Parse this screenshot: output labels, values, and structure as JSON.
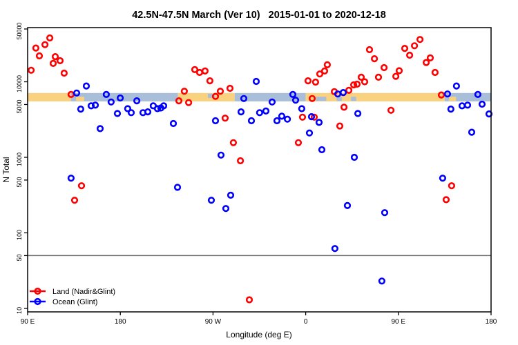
{
  "chart_data": {
    "type": "scatter",
    "title": "42.5N-47.5N March (Ver 10)   2015-01-01 to 2020-12-18",
    "xlabel": "Longitude (deg E)",
    "ylabel": "N Total",
    "x_axis": {
      "scale": "linear",
      "unit": "deg E (wrapped, 90E eastward around globe to 180)",
      "range_deg": [
        90,
        540
      ],
      "ticks": [
        {
          "deg": 90,
          "label": "90 E"
        },
        {
          "deg": 180,
          "label": "180"
        },
        {
          "deg": 270,
          "label": "90 W"
        },
        {
          "deg": 360,
          "label": "0"
        },
        {
          "deg": 450,
          "label": "90 E"
        },
        {
          "deg": 540,
          "label": "180"
        }
      ]
    },
    "y_axis": {
      "scale": "log10",
      "range": [
        10,
        50000
      ],
      "ticks": [
        {
          "value": 50000,
          "label": "50000"
        },
        {
          "value": 10000,
          "label": "10000"
        },
        {
          "value": 5000,
          "label": "5000"
        },
        {
          "value": 1000,
          "label": "1000"
        },
        {
          "value": 500,
          "label": "500"
        },
        {
          "value": 100,
          "label": "100"
        },
        {
          "value": 50,
          "label": "50"
        },
        {
          "value": 10,
          "label": "10"
        }
      ]
    },
    "reference_line": {
      "value": 50,
      "color": "#6e6e6e"
    },
    "land_ocean_strip": {
      "description": "land/ocean mask along 45N plotted as colored band",
      "value_low": 5500,
      "value_high": 7100,
      "land_color": "#FAD17E",
      "ocean_color": "#A8BED9",
      "segments": [
        {
          "from": 90,
          "to": 132,
          "type": "land"
        },
        {
          "from": 132,
          "to": 236,
          "type": "ocean"
        },
        {
          "from": 236,
          "to": 291,
          "type": "land"
        },
        {
          "from": 291,
          "to": 360,
          "type": "ocean"
        },
        {
          "from": 360,
          "to": 495,
          "type": "land"
        },
        {
          "from": 495,
          "to": 540,
          "type": "ocean"
        }
      ],
      "flecks": [
        {
          "from": 137,
          "to": 145,
          "type": "land",
          "pos": "lower"
        },
        {
          "from": 265,
          "to": 272,
          "type": "ocean",
          "pos": "upper"
        },
        {
          "from": 370,
          "to": 380,
          "type": "ocean",
          "pos": "lower"
        },
        {
          "from": 390,
          "to": 395,
          "type": "ocean",
          "pos": "lower"
        },
        {
          "from": 404,
          "to": 409,
          "type": "ocean",
          "pos": "lower"
        },
        {
          "from": 499,
          "to": 506,
          "type": "land",
          "pos": "lower"
        }
      ]
    },
    "legend": {
      "position": "bottom-left",
      "entries": [
        {
          "label": "Land (Nadir&Glint)",
          "color": "#FF0000"
        },
        {
          "label": "Ocean (Glint)",
          "color": "#0000FF"
        }
      ]
    },
    "series": [
      {
        "name": "Land (Nadir&Glint)",
        "color": "#FF0000",
        "marker": "open-circle",
        "points": [
          [
            111.5,
            38000
          ],
          [
            106.8,
            31000
          ],
          [
            98,
            28000
          ],
          [
            101.4,
            22000
          ],
          [
            116.8,
            21500
          ],
          [
            121.5,
            19000
          ],
          [
            114.8,
            17500
          ],
          [
            93.4,
            14200
          ],
          [
            125.5,
            13000
          ],
          [
            132.2,
            6800
          ],
          [
            142.3,
            420
          ],
          [
            135.6,
            270
          ],
          [
            236.9,
            5600
          ],
          [
            242.2,
            7500
          ],
          [
            246.3,
            5300
          ],
          [
            252.3,
            14500
          ],
          [
            257,
            13300
          ],
          [
            262.3,
            13900
          ],
          [
            267,
            10300
          ],
          [
            272.4,
            6400
          ],
          [
            277.1,
            7500
          ],
          [
            286.5,
            8200
          ],
          [
            281.8,
            3300
          ],
          [
            289.8,
            1560
          ],
          [
            296.6,
            900
          ],
          [
            305.3,
            13
          ],
          [
            352.9,
            1560
          ],
          [
            356.9,
            3400
          ],
          [
            368.3,
            3400
          ],
          [
            362.3,
            10300
          ],
          [
            366.3,
            6000
          ],
          [
            369.6,
            9900
          ],
          [
            373.7,
            12700
          ],
          [
            378.4,
            13900
          ],
          [
            381,
            16800
          ],
          [
            387.8,
            7400
          ],
          [
            393.1,
            2600
          ],
          [
            397.2,
            4600
          ],
          [
            401.9,
            7700
          ],
          [
            406.6,
            9100
          ],
          [
            409.9,
            9300
          ],
          [
            413.9,
            11500
          ],
          [
            417.3,
            10000
          ],
          [
            422,
            26600
          ],
          [
            426.7,
            20200
          ],
          [
            430.7,
            11500
          ],
          [
            436.1,
            15400
          ],
          [
            442.8,
            4200
          ],
          [
            447.5,
            11800
          ],
          [
            450.8,
            14000
          ],
          [
            456.2,
            27700
          ],
          [
            460.9,
            22500
          ],
          [
            465.6,
            30000
          ],
          [
            471,
            36300
          ],
          [
            477,
            18000
          ],
          [
            481,
            20700
          ],
          [
            485.6,
            13300
          ],
          [
            491.7,
            6700
          ],
          [
            496.4,
            275
          ],
          [
            501.7,
            420
          ]
        ]
      },
      {
        "name": "Ocean (Glint)",
        "color": "#0000FF",
        "marker": "open-circle",
        "points": [
          [
            137.6,
            7100
          ],
          [
            147,
            8800
          ],
          [
            166.4,
            6800
          ],
          [
            179.9,
            6100
          ],
          [
            171.1,
            5400
          ],
          [
            151.7,
            4800
          ],
          [
            155.7,
            4900
          ],
          [
            141.6,
            4350
          ],
          [
            177.2,
            3800
          ],
          [
            187.2,
            4400
          ],
          [
            190.6,
            3900
          ],
          [
            160.4,
            2400
          ],
          [
            196,
            5600
          ],
          [
            202,
            3900
          ],
          [
            206.7,
            4000
          ],
          [
            212,
            4800
          ],
          [
            216.1,
            4400
          ],
          [
            219.4,
            4500
          ],
          [
            222.1,
            4800
          ],
          [
            231.5,
            2800
          ],
          [
            132.2,
            530
          ],
          [
            235.5,
            400
          ],
          [
            268.4,
            270
          ],
          [
            287.2,
            315
          ],
          [
            282.5,
            210
          ],
          [
            277.8,
            1070
          ],
          [
            272.4,
            3050
          ],
          [
            297.2,
            4000
          ],
          [
            299.9,
            6000
          ],
          [
            307.3,
            3050
          ],
          [
            312,
            10100
          ],
          [
            315.3,
            3900
          ],
          [
            321.4,
            4100
          ],
          [
            327.4,
            5400
          ],
          [
            332.1,
            3050
          ],
          [
            336.8,
            3500
          ],
          [
            342.2,
            3200
          ],
          [
            347.5,
            6800
          ],
          [
            350.2,
            5700
          ],
          [
            356.2,
            4400
          ],
          [
            363.6,
            2100
          ],
          [
            365.6,
            3450
          ],
          [
            373,
            2900
          ],
          [
            375.7,
            1260
          ],
          [
            388.4,
            62
          ],
          [
            391.1,
            6900
          ],
          [
            396.5,
            7200
          ],
          [
            400.5,
            230
          ],
          [
            407.2,
            1000
          ],
          [
            410.6,
            3800
          ],
          [
            434,
            23
          ],
          [
            436.7,
            185
          ],
          [
            493,
            530
          ],
          [
            497.7,
            6900
          ],
          [
            506.4,
            8800
          ],
          [
            501,
            4350
          ],
          [
            511.8,
            4800
          ],
          [
            517.2,
            4900
          ],
          [
            527.2,
            6800
          ],
          [
            531.3,
            5050
          ],
          [
            538,
            3750
          ],
          [
            521.2,
            2150
          ]
        ]
      }
    ]
  }
}
